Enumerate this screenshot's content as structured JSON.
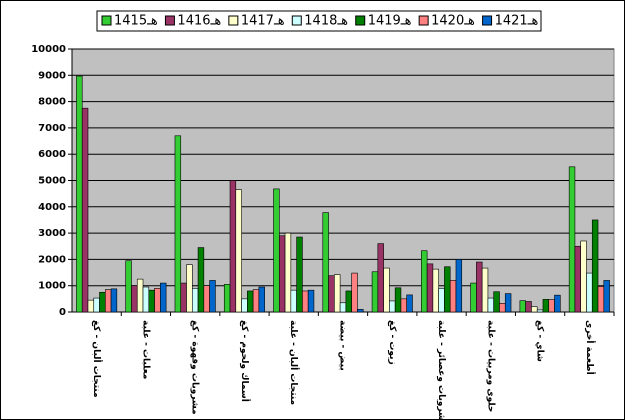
{
  "chart_data": {
    "type": "bar",
    "categories": [
      "منتجات ألبان - كغ",
      "معلبات - علبة",
      "مشروبات وقهوة - كغ",
      "أسماك ولحوم - كغ",
      "منتجات ألبان - علبة",
      "بيض - بيضة",
      "زيوت - كغ",
      "مشروبات وعصائر - علبة",
      "حلوى ومربيات - علبة",
      "شاي - كغ",
      "أطعمة أخرى"
    ],
    "series": [
      {
        "name": "1415هـ",
        "color": "#33cc33",
        "values": [
          8970,
          1950,
          6700,
          1050,
          4680,
          3780,
          1530,
          2330,
          1100,
          430,
          5520
        ]
      },
      {
        "name": "1416هـ",
        "color": "#993366",
        "values": [
          7750,
          1000,
          1100,
          5000,
          2900,
          1380,
          2600,
          1830,
          1900,
          400,
          2500
        ]
      },
      {
        "name": "1417هـ",
        "color": "#ffffcc",
        "values": [
          450,
          1250,
          1800,
          4650,
          3000,
          1420,
          1670,
          1630,
          1670,
          200,
          2700
        ]
      },
      {
        "name": "1418هـ",
        "color": "#ccffff",
        "values": [
          530,
          950,
          900,
          500,
          830,
          350,
          420,
          900,
          530,
          80,
          1480
        ]
      },
      {
        "name": "1419هـ",
        "color": "#008000",
        "values": [
          750,
          830,
          2450,
          800,
          2850,
          800,
          920,
          1720,
          770,
          480,
          3500
        ]
      },
      {
        "name": "1420هـ",
        "color": "#ff8080",
        "values": [
          850,
          900,
          1000,
          850,
          800,
          1480,
          500,
          1200,
          330,
          470,
          970
        ]
      },
      {
        "name": "1421هـ",
        "color": "#0066cc",
        "values": [
          880,
          1100,
          1200,
          950,
          830,
          100,
          650,
          2000,
          700,
          640,
          1200
        ]
      }
    ],
    "ylim": [
      0,
      10000
    ],
    "yticks": [
      0,
      1000,
      2000,
      3000,
      4000,
      5000,
      6000,
      7000,
      8000,
      9000,
      10000
    ],
    "grid": true,
    "legend": "top"
  }
}
